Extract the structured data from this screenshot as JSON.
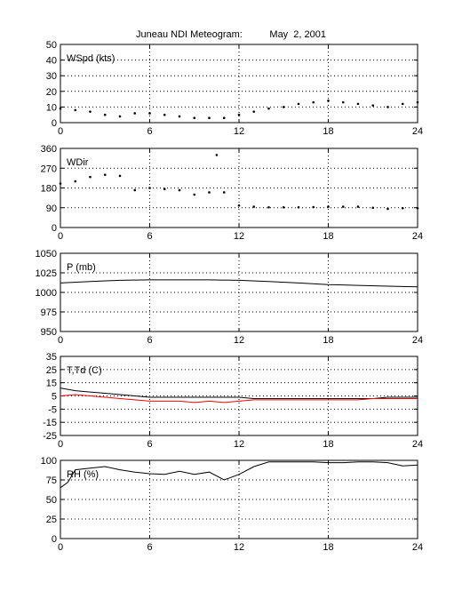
{
  "title": {
    "station": "Juneau NDI Meteogram:",
    "date": "May  2, 2001"
  },
  "chart_data": [
    {
      "type": "scatter",
      "label": "WSpd (kts)",
      "xlim": [
        0,
        24
      ],
      "ylim": [
        0,
        50
      ],
      "xticks": [
        0,
        6,
        12,
        18,
        24
      ],
      "yticks": [
        0,
        10,
        20,
        30,
        40,
        50
      ],
      "grid": true,
      "series": [
        {
          "color": "#000000",
          "style": "dots",
          "x": [
            0,
            1,
            2,
            3,
            4,
            5,
            6,
            7,
            8,
            9,
            10,
            11,
            12,
            13,
            14,
            15,
            16,
            17,
            18,
            19,
            20,
            21,
            22,
            23,
            24
          ],
          "y": [
            9,
            8,
            7,
            5,
            4,
            6,
            6,
            5,
            4,
            3,
            3,
            3,
            5,
            7,
            9,
            10,
            12,
            13,
            14,
            13,
            12,
            11,
            10,
            12,
            13
          ]
        }
      ]
    },
    {
      "type": "scatter",
      "label": "WDir",
      "xlim": [
        0,
        24
      ],
      "ylim": [
        0,
        360
      ],
      "xticks": [
        0,
        6,
        12,
        18,
        24
      ],
      "yticks": [
        0,
        90,
        180,
        270,
        360
      ],
      "grid": true,
      "series": [
        {
          "color": "#000000",
          "style": "dots",
          "x": [
            0,
            1,
            2,
            3,
            4,
            5,
            6,
            7,
            8,
            9,
            10,
            10.5,
            11,
            12,
            13,
            14,
            15,
            16,
            17,
            18,
            19,
            20,
            21,
            22,
            23,
            24
          ],
          "y": [
            200,
            210,
            230,
            240,
            235,
            170,
            180,
            175,
            170,
            150,
            160,
            330,
            160,
            100,
            95,
            92,
            92,
            92,
            93,
            95,
            95,
            95,
            90,
            85,
            88,
            88
          ]
        }
      ]
    },
    {
      "type": "line",
      "label": "P (mb)",
      "xlim": [
        0,
        24
      ],
      "ylim": [
        950,
        1050
      ],
      "xticks": [
        0,
        6,
        12,
        18,
        24
      ],
      "yticks": [
        950,
        975,
        1000,
        1025,
        1050
      ],
      "grid": true,
      "series": [
        {
          "color": "#000000",
          "style": "line",
          "x": [
            0,
            2,
            4,
            6,
            8,
            10,
            12,
            14,
            16,
            18,
            20,
            22,
            24
          ],
          "y": [
            1012,
            1014,
            1015.5,
            1016,
            1016,
            1016,
            1015.5,
            1014,
            1012,
            1010,
            1009,
            1008,
            1007
          ]
        }
      ]
    },
    {
      "type": "line",
      "label": "T,Td (C)",
      "xlim": [
        0,
        24
      ],
      "ylim": [
        -25,
        35
      ],
      "xticks": [
        0,
        6,
        12,
        18,
        24
      ],
      "yticks": [
        -25,
        -15,
        -5,
        5,
        15,
        25,
        35
      ],
      "grid": true,
      "series": [
        {
          "color": "#000000",
          "style": "line",
          "x": [
            0,
            1,
            2,
            3,
            4,
            5,
            6,
            7,
            8,
            9,
            10,
            11,
            12,
            13,
            14,
            15,
            16,
            17,
            18,
            19,
            20,
            21,
            22,
            23,
            24
          ],
          "y": [
            11,
            9,
            8,
            7,
            6,
            5,
            4,
            4,
            4,
            4,
            4,
            4,
            4,
            3,
            3,
            3,
            3,
            3,
            3,
            3,
            3,
            3,
            4,
            4,
            4
          ]
        },
        {
          "color": "#ff0000",
          "style": "line",
          "x": [
            0,
            1,
            2,
            3,
            4,
            5,
            6,
            7,
            8,
            9,
            10,
            11,
            12,
            13,
            14,
            15,
            16,
            17,
            18,
            19,
            20,
            21,
            22,
            23,
            24
          ],
          "y": [
            5,
            6,
            5,
            4,
            3,
            2,
            1,
            1,
            1,
            0,
            1,
            0,
            1,
            2,
            2,
            2,
            2,
            2,
            2,
            2,
            2,
            3,
            3,
            3,
            3
          ]
        }
      ]
    },
    {
      "type": "line",
      "label": "RH (%)",
      "xlim": [
        0,
        24
      ],
      "ylim": [
        0,
        100
      ],
      "xticks": [
        0,
        6,
        12,
        18,
        24
      ],
      "yticks": [
        0,
        25,
        50,
        75,
        100
      ],
      "grid": true,
      "series": [
        {
          "color": "#000000",
          "style": "line",
          "x": [
            0,
            0.5,
            1,
            2,
            3,
            4,
            5,
            6,
            7,
            8,
            9,
            10,
            11,
            12,
            13,
            14,
            15,
            16,
            17,
            18,
            19,
            20,
            21,
            22,
            23,
            24
          ],
          "y": [
            65,
            72,
            88,
            90,
            92,
            88,
            85,
            83,
            82,
            86,
            82,
            85,
            75,
            82,
            92,
            98,
            98,
            98,
            98,
            97,
            97,
            98,
            98,
            97,
            93,
            94
          ]
        }
      ]
    }
  ]
}
